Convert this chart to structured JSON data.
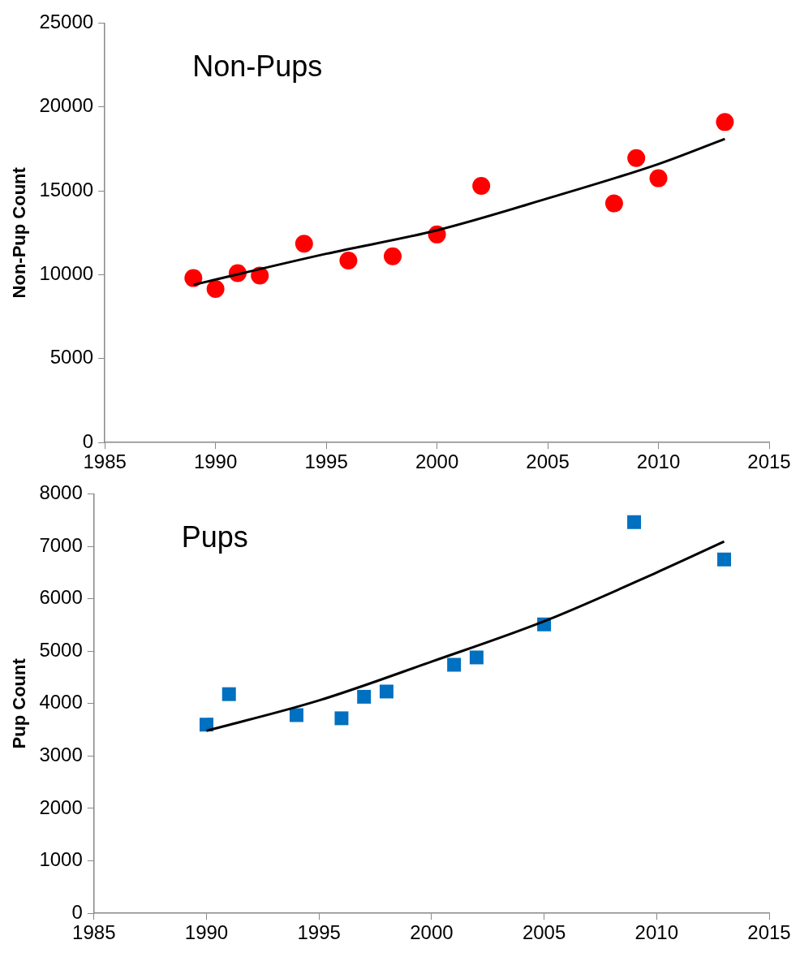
{
  "chart_data": [
    {
      "type": "scatter",
      "ylabel": "Non-Pup Count",
      "annotations": [
        "Non-Pups"
      ],
      "xlim": [
        1985,
        2015
      ],
      "xticks": [
        1985,
        1990,
        1995,
        2000,
        2005,
        2010,
        2015
      ],
      "ylim": [
        0,
        25000
      ],
      "yticks": [
        0,
        5000,
        10000,
        15000,
        20000,
        25000
      ],
      "grid": false,
      "legend": false,
      "series": [
        {
          "color": "#ff0000",
          "marker": "circle",
          "x": [
            1989,
            1990,
            1991,
            1992,
            1994,
            1996,
            1998,
            2000,
            2002,
            2008,
            2009,
            2010,
            2013
          ],
          "values": [
            9800,
            9150,
            10100,
            9950,
            11850,
            10850,
            11100,
            12400,
            15300,
            14250,
            16950,
            15750,
            19100
          ]
        },
        {
          "type": "line",
          "color": "#000000",
          "marker": "none",
          "line_style": "solid",
          "x": [
            1989,
            1995,
            2000,
            2005,
            2010,
            2013
          ],
          "values": [
            9400,
            11250,
            12650,
            14550,
            16600,
            18100
          ]
        }
      ]
    },
    {
      "type": "scatter",
      "ylabel": "Pup Count",
      "annotations": [
        "Pups"
      ],
      "xlim": [
        1985,
        2015
      ],
      "xticks": [
        1985,
        1990,
        1995,
        2000,
        2005,
        2010,
        2015
      ],
      "ylim": [
        0,
        8000
      ],
      "yticks": [
        0,
        1000,
        2000,
        3000,
        4000,
        5000,
        6000,
        7000,
        8000
      ],
      "grid": false,
      "legend": false,
      "series": [
        {
          "color": "#0070c0",
          "marker": "square",
          "x": [
            1990,
            1991,
            1994,
            1996,
            1997,
            1998,
            2001,
            2002,
            2005,
            2009,
            2013
          ],
          "values": [
            3600,
            4180,
            3780,
            3720,
            4130,
            4230,
            4740,
            4880,
            5510,
            7460,
            6750
          ]
        },
        {
          "type": "line",
          "color": "#000000",
          "marker": "none",
          "line_style": "solid",
          "x": [
            1990,
            1995,
            2000,
            2005,
            2010,
            2013
          ],
          "values": [
            3480,
            4060,
            4800,
            5570,
            6500,
            7090
          ]
        }
      ]
    }
  ]
}
